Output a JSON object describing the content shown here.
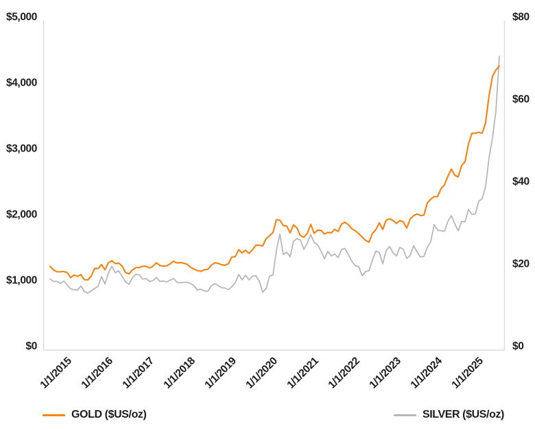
{
  "colors": {
    "gold_line": "#F28718",
    "silver_line": "#B5B7B9",
    "axis_border": "#DBDBDB",
    "text": "#1C1C1C"
  },
  "chart_data": {
    "type": "line",
    "title": "",
    "grid": false,
    "legend_position": "bottom",
    "x_interval": "monthly",
    "x_start": "1/2015",
    "x_end": "12/2025",
    "x_tick_labels": [
      "1/1/2015",
      "1/1/2016",
      "1/1/2017",
      "1/1/2018",
      "1/1/2019",
      "1/1/2020",
      "1/1/2021",
      "1/1/2022",
      "1/1/2023",
      "1/1/2024",
      "1/1/2025"
    ],
    "left_axis": {
      "title": "GOLD ($US/oz)",
      "range": [
        0,
        5000
      ],
      "tick_labels": [
        "$5,000",
        "$4,000",
        "$3,000",
        "$2,000",
        "$1,000",
        "$0"
      ]
    },
    "right_axis": {
      "title": "SILVER ($US/oz)",
      "range": [
        0,
        80
      ],
      "tick_labels": [
        "$80",
        "$60",
        "$40",
        "$20",
        "$0"
      ]
    },
    "series": [
      {
        "name": "GOLD ($US/oz)",
        "axis": "left",
        "color": "#F28718",
        "values": [
          1266,
          1213,
          1184,
          1184,
          1190,
          1172,
          1095,
          1135,
          1115,
          1142,
          1065,
          1060,
          1118,
          1234,
          1233,
          1293,
          1215,
          1321,
          1351,
          1309,
          1316,
          1273,
          1173,
          1152,
          1211,
          1248,
          1249,
          1268,
          1269,
          1242,
          1269,
          1321,
          1280,
          1271,
          1275,
          1303,
          1345,
          1318,
          1325,
          1315,
          1298,
          1253,
          1224,
          1202,
          1192,
          1215,
          1222,
          1282,
          1321,
          1313,
          1292,
          1283,
          1306,
          1409,
          1414,
          1520,
          1472,
          1511,
          1464,
          1517,
          1589,
          1586,
          1577,
          1687,
          1730,
          1781,
          1976,
          1968,
          1886,
          1879,
          1777,
          1898,
          1848,
          1734,
          1708,
          1768,
          1905,
          1770,
          1814,
          1814,
          1757,
          1783,
          1775,
          1829,
          1797,
          1909,
          1937,
          1897,
          1837,
          1807,
          1766,
          1711,
          1661,
          1634,
          1769,
          1824,
          1928,
          1827,
          1969,
          1990,
          1963,
          1919,
          1965,
          1940,
          1849,
          1984,
          2036,
          2063,
          2040,
          2044,
          2230,
          2286,
          2327,
          2327,
          2448,
          2503,
          2635,
          2744,
          2651,
          2625,
          2798,
          2858,
          3124,
          3289,
          3289,
          3303,
          3290,
          3448,
          3859,
          4150,
          4250,
          4310
        ]
      },
      {
        "name": "SILVER ($US/oz)",
        "axis": "right",
        "color": "#B5B7B9",
        "values": [
          17.2,
          16.6,
          16.6,
          16.1,
          16.7,
          15.7,
          14.8,
          14.6,
          14.5,
          15.5,
          14.1,
          13.8,
          14.3,
          14.9,
          15.4,
          17.8,
          16.0,
          18.6,
          20.3,
          18.7,
          19.2,
          17.8,
          16.5,
          15.9,
          17.5,
          18.3,
          18.2,
          17.2,
          17.3,
          16.6,
          16.8,
          17.6,
          16.6,
          16.7,
          16.5,
          16.9,
          17.3,
          16.4,
          16.3,
          16.4,
          16.4,
          16.1,
          15.5,
          14.5,
          14.7,
          14.3,
          14.2,
          15.5,
          16.1,
          15.6,
          15.1,
          15.0,
          14.6,
          15.3,
          16.3,
          18.3,
          17.0,
          18.1,
          17.0,
          17.9,
          18.0,
          16.7,
          14.0,
          14.9,
          17.9,
          18.2,
          24.2,
          28.1,
          23.2,
          23.7,
          22.6,
          26.4,
          27.0,
          26.7,
          24.4,
          25.9,
          28.0,
          26.1,
          25.5,
          24.0,
          22.1,
          23.9,
          22.8,
          23.3,
          22.4,
          24.4,
          24.6,
          23.1,
          21.5,
          20.4,
          20.2,
          18.0,
          19.0,
          19.2,
          21.8,
          24.0,
          23.6,
          20.9,
          24.1,
          25.1,
          23.6,
          22.8,
          24.9,
          24.4,
          22.2,
          22.9,
          25.3,
          23.8,
          22.5,
          22.7,
          24.9,
          26.3,
          30.4,
          29.1,
          28.9,
          28.8,
          31.2,
          32.6,
          30.6,
          28.9,
          31.2,
          31.1,
          34.1,
          32.9,
          33.0,
          36.1,
          36.7,
          39.7,
          46.7,
          51.5,
          58.0,
          71.3
        ]
      }
    ]
  }
}
